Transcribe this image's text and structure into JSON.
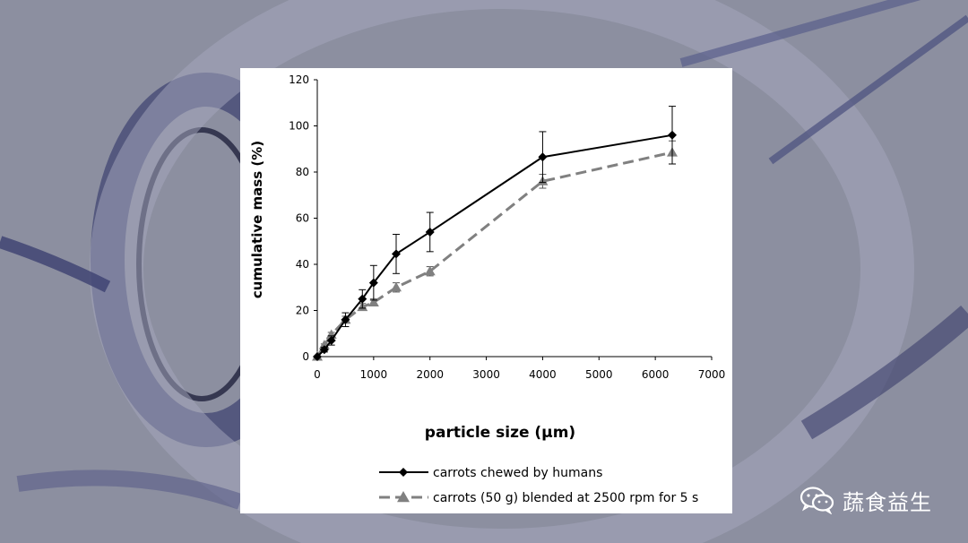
{
  "chart_data": {
    "type": "line",
    "title": "",
    "xlabel": "particle size (µm)",
    "ylabel": "cumulative mass (%)",
    "xlim": [
      0,
      7000
    ],
    "ylim": [
      0,
      120
    ],
    "xticks": [
      "0",
      "1000",
      "2000",
      "3000",
      "4000",
      "5000",
      "6000",
      "7000"
    ],
    "yticks": [
      "0",
      "20",
      "40",
      "60",
      "80",
      "100",
      "120"
    ],
    "grid": false,
    "legend_position": "bottom",
    "series": [
      {
        "name": "carrots chewed by humans",
        "color": "#000000",
        "marker": "diamond",
        "line_style": "solid",
        "x": [
          0,
          125,
          250,
          500,
          800,
          1000,
          1400,
          2000,
          4000,
          6300
        ],
        "y": [
          0,
          3,
          7,
          16,
          25,
          32,
          44.5,
          54,
          86.5,
          96
        ],
        "error": [
          0,
          1,
          2,
          3,
          4,
          7.5,
          8.5,
          8.5,
          11,
          12.5
        ]
      },
      {
        "name": "carrots (50 g) blended at 2500 rpm for 5 s",
        "color": "#808080",
        "marker": "triangle",
        "line_style": "dashed",
        "x": [
          0,
          125,
          250,
          500,
          800,
          1000,
          1400,
          2000,
          4000,
          6300
        ],
        "y": [
          0,
          5,
          9.5,
          16,
          21.5,
          23.5,
          30,
          37,
          76,
          88.5
        ],
        "error": [
          0,
          0.5,
          1,
          1.5,
          1.5,
          1.5,
          2,
          2,
          3,
          5
        ]
      }
    ]
  },
  "watermark": {
    "icon": "wechat-icon",
    "text": "蔬食益生"
  }
}
